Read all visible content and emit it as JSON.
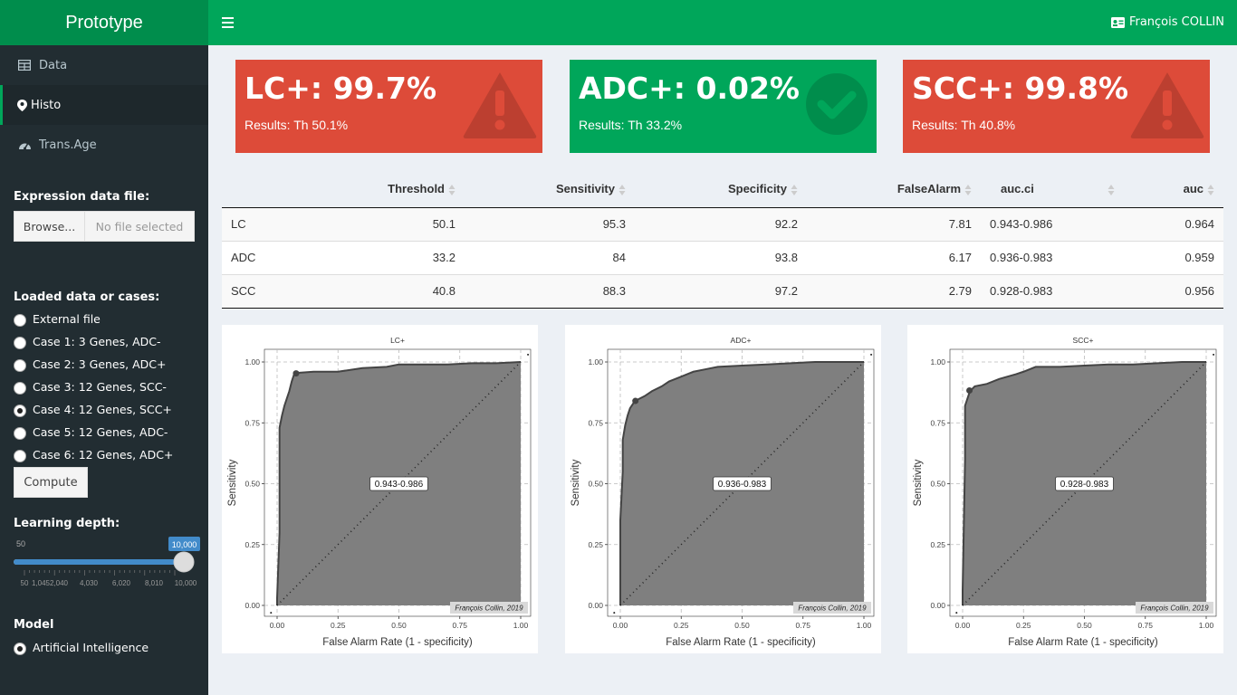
{
  "app": {
    "title": "Prototype",
    "user": "François COLLIN"
  },
  "sidebar": {
    "menu": [
      {
        "label": "Data",
        "icon": "table-icon"
      },
      {
        "label": "Histo",
        "icon": "heartbeat-icon",
        "active": true
      },
      {
        "label": "Trans.Age",
        "icon": "tachometer-icon"
      }
    ],
    "file_input": {
      "label": "Expression data file:",
      "button": "Browse...",
      "placeholder": "No file selected"
    },
    "cases": {
      "label": "Loaded data or cases:",
      "options": [
        "External file",
        "Case 1: 3 Genes, ADC-",
        "Case 2: 3 Genes, ADC+",
        "Case 3: 12 Genes, SCC-",
        "Case 4: 12 Genes, SCC+",
        "Case 5: 12 Genes, ADC-",
        "Case 6: 12 Genes, ADC+"
      ],
      "selected": "Case 4: 12 Genes, SCC+"
    },
    "compute_button": "Compute",
    "slider": {
      "label": "Learning depth:",
      "min_label": "50",
      "value_label": "10,000",
      "value_fraction": 1.0,
      "ticks": [
        "50",
        "1,0452,040",
        "4,030",
        "6,020",
        "8,010",
        "10,000"
      ]
    },
    "model": {
      "label": "Model",
      "options": [
        "Artificial Intelligence"
      ],
      "selected": "Artificial Intelligence"
    }
  },
  "value_boxes": [
    {
      "title": "LC+: 99.7%",
      "subtitle": "Results: Th 50.1%",
      "status": "warning",
      "color": "#dd4b39",
      "icon": "warning-icon"
    },
    {
      "title": "ADC+: 0.02%",
      "subtitle": "Results: Th 33.2%",
      "status": "ok",
      "color": "#00a65a",
      "icon": "check-circle-icon"
    },
    {
      "title": "SCC+: 99.8%",
      "subtitle": "Results: Th 40.8%",
      "status": "warning",
      "color": "#dd4b39",
      "icon": "warning-icon"
    }
  ],
  "table": {
    "columns": [
      "",
      "Threshold",
      "Sensitivity",
      "Specificity",
      "FalseAlarm",
      "auc.ci",
      "auc"
    ],
    "rows": [
      [
        "LC",
        "50.1",
        "95.3",
        "92.2",
        "7.81",
        "0.943-0.986",
        "0.964"
      ],
      [
        "ADC",
        "33.2",
        "84",
        "93.8",
        "6.17",
        "0.936-0.983",
        "0.959"
      ],
      [
        "SCC",
        "40.8",
        "88.3",
        "97.2",
        "2.79",
        "0.928-0.983",
        "0.956"
      ]
    ]
  },
  "chart_data": [
    {
      "type": "area",
      "title": "LC+",
      "xlabel": "False Alarm Rate (1 - specificity)",
      "ylabel": "Sensitivity",
      "xlim": [
        0,
        1
      ],
      "ylim": [
        0,
        1
      ],
      "xticks": [
        "0.00",
        "0.25",
        "0.50",
        "0.75",
        "1.00"
      ],
      "yticks": [
        "0.00",
        "0.25",
        "0.50",
        "0.75",
        "1.00"
      ],
      "annotation": "0.943-0.986",
      "caption": "François Collin, 2019",
      "threshold_point": [
        0.078,
        0.953
      ],
      "x": [
        0,
        0,
        0.01,
        0.01,
        0.02,
        0.03,
        0.04,
        0.05,
        0.06,
        0.07,
        0.08,
        0.15,
        0.25,
        0.35,
        0.45,
        0.5,
        0.7,
        0.8,
        0.9,
        1.0
      ],
      "y": [
        0,
        0.03,
        0.3,
        0.73,
        0.78,
        0.82,
        0.85,
        0.88,
        0.92,
        0.95,
        0.955,
        0.96,
        0.96,
        0.975,
        0.98,
        0.99,
        0.99,
        0.995,
        0.995,
        1.0
      ],
      "grid": true
    },
    {
      "type": "area",
      "title": "ADC+",
      "xlabel": "False Alarm Rate (1 - specificity)",
      "ylabel": "Sensitivity",
      "xlim": [
        0,
        1
      ],
      "ylim": [
        0,
        1
      ],
      "xticks": [
        "0.00",
        "0.25",
        "0.50",
        "0.75",
        "1.00"
      ],
      "yticks": [
        "0.00",
        "0.25",
        "0.50",
        "0.75",
        "1.00"
      ],
      "annotation": "0.936-0.983",
      "caption": "François Collin, 2019",
      "threshold_point": [
        0.062,
        0.84
      ],
      "x": [
        0,
        0,
        0.01,
        0.01,
        0.02,
        0.03,
        0.04,
        0.06,
        0.08,
        0.1,
        0.13,
        0.17,
        0.2,
        0.25,
        0.3,
        0.35,
        0.4,
        0.5,
        0.6,
        0.7,
        0.8,
        1.0
      ],
      "y": [
        0,
        0.35,
        0.55,
        0.68,
        0.74,
        0.78,
        0.81,
        0.84,
        0.85,
        0.86,
        0.88,
        0.9,
        0.92,
        0.94,
        0.96,
        0.97,
        0.98,
        0.985,
        0.99,
        0.995,
        1.0,
        1.0
      ],
      "grid": true
    },
    {
      "type": "area",
      "title": "SCC+",
      "xlabel": "False Alarm Rate (1 - specificity)",
      "ylabel": "Sensitivity",
      "xlim": [
        0,
        1
      ],
      "ylim": [
        0,
        1
      ],
      "xticks": [
        "0.00",
        "0.25",
        "0.50",
        "0.75",
        "1.00"
      ],
      "yticks": [
        "0.00",
        "0.25",
        "0.50",
        "0.75",
        "1.00"
      ],
      "annotation": "0.928-0.983",
      "caption": "François Collin, 2019",
      "threshold_point": [
        0.028,
        0.883
      ],
      "x": [
        0,
        0,
        0.01,
        0.01,
        0.02,
        0.03,
        0.05,
        0.1,
        0.15,
        0.22,
        0.25,
        0.3,
        0.4,
        0.5,
        0.6,
        0.7,
        0.8,
        0.9,
        1.0
      ],
      "y": [
        0,
        0.06,
        0.6,
        0.82,
        0.85,
        0.88,
        0.9,
        0.91,
        0.93,
        0.95,
        0.96,
        0.98,
        0.98,
        0.985,
        0.99,
        0.99,
        0.995,
        1.0,
        1.0
      ],
      "grid": true
    }
  ]
}
